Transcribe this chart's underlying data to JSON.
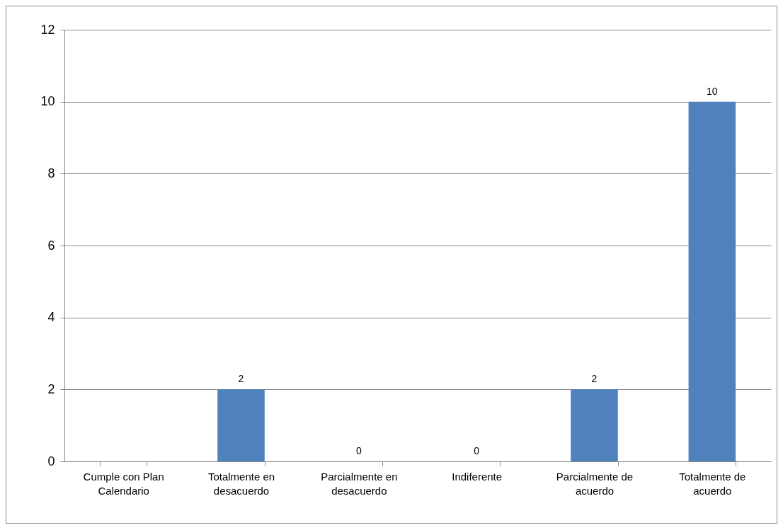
{
  "chart_data": {
    "type": "bar",
    "categories": [
      "Cumple con Plan Calendario",
      "Totalmente en desacuerdo",
      "Parcialmente en desacuerdo",
      "Indiferente",
      "Parcialmente de acuerdo",
      "Totalmente de acuerdo"
    ],
    "values": [
      null,
      2,
      0,
      0,
      2,
      10
    ],
    "value_labels": [
      null,
      "2",
      "0",
      "0",
      "2",
      "10"
    ],
    "color": "#4f81bd",
    "ylim": [
      0,
      12
    ],
    "yticks": [
      0,
      2,
      4,
      6,
      8,
      10,
      12
    ],
    "grid": "y"
  }
}
